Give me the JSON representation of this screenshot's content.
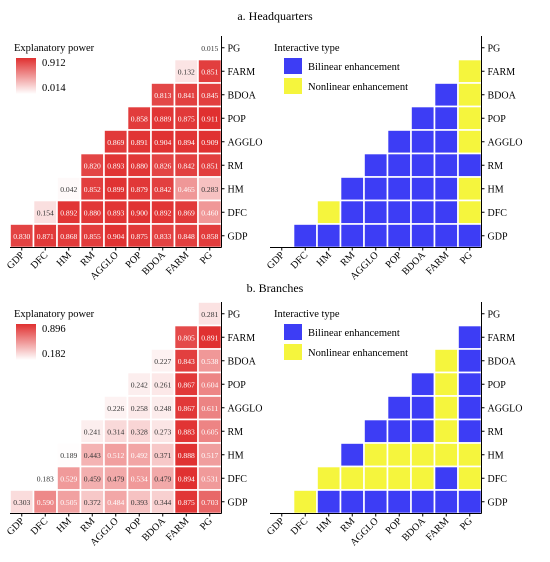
{
  "figure": {
    "panel_a_title": "a. Headquarters",
    "panel_b_title": "b. Branches"
  },
  "chart_data": [
    {
      "type": "heatmap",
      "title": "a. Headquarters",
      "legend_title": "Explanatory power",
      "legend_max": "0.912",
      "legend_min": "0.014",
      "legend_max_value": 0.912,
      "legend_min_value": 0.014,
      "color_low": "#ffffff",
      "color_high": "#e03030",
      "x_labels": [
        "GDP",
        "DFC",
        "HM",
        "RM",
        "AGGLO",
        "POP",
        "BDOA",
        "FARM",
        "PG"
      ],
      "y_labels": [
        "PG",
        "FARM",
        "BDOA",
        "POP",
        "AGGLO",
        "RM",
        "HM",
        "DFC",
        "GDP"
      ],
      "rows": [
        [
          "0.015"
        ],
        [
          "0.132",
          "0.851"
        ],
        [
          "0.813",
          "0.841",
          "0.845"
        ],
        [
          "0.858",
          "0.889",
          "0.875",
          "0.911"
        ],
        [
          "0.869",
          "0.891",
          "0.904",
          "0.894",
          "0.909"
        ],
        [
          "0.820",
          "0.893",
          "0.880",
          "0.826",
          "0.842",
          "0.851"
        ],
        [
          "0.042",
          "0.852",
          "0.899",
          "0.879",
          "0.842",
          "0.465",
          "0.283"
        ],
        [
          "0.154",
          "0.892",
          "0.880",
          "0.893",
          "0.900",
          "0.892",
          "0.869",
          "0.460"
        ],
        [
          "0.830",
          "0.871",
          "0.868",
          "0.855",
          "0.904",
          "0.875",
          "0.833",
          "0.848",
          "0.858"
        ]
      ]
    },
    {
      "type": "heatmap",
      "title": "a. Headquarters",
      "legend_title": "Interactive type",
      "categories": [
        "Bilinear enhancement",
        "Nonlinear enhancement"
      ],
      "colors": {
        "B": "#3d3df5",
        "N": "#f5f53d"
      },
      "x_labels": [
        "GDP",
        "DFC",
        "HM",
        "RM",
        "AGGLO",
        "POP",
        "BDOA",
        "FARM",
        "PG"
      ],
      "y_labels": [
        "PG",
        "FARM",
        "BDOA",
        "POP",
        "AGGLO",
        "RM",
        "HM",
        "DFC",
        "GDP"
      ],
      "rows": [
        [],
        [
          "N"
        ],
        [
          "B",
          "N"
        ],
        [
          "B",
          "B",
          "N"
        ],
        [
          "B",
          "B",
          "B",
          "N"
        ],
        [
          "B",
          "B",
          "B",
          "B",
          "B"
        ],
        [
          "B",
          "B",
          "B",
          "B",
          "B",
          "N"
        ],
        [
          "N",
          "B",
          "B",
          "B",
          "B",
          "B",
          "N"
        ],
        [
          "B",
          "B",
          "B",
          "B",
          "B",
          "B",
          "B",
          "B"
        ]
      ]
    },
    {
      "type": "heatmap",
      "title": "b. Branches",
      "legend_title": "Explanatory power",
      "legend_max": "0.896",
      "legend_min": "0.182",
      "legend_max_value": 0.896,
      "legend_min_value": 0.182,
      "color_low": "#ffffff",
      "color_high": "#e03030",
      "x_labels": [
        "GDP",
        "DFC",
        "HM",
        "RM",
        "AGGLO",
        "POP",
        "BDOA",
        "FARM",
        "PG"
      ],
      "y_labels": [
        "PG",
        "FARM",
        "BDOA",
        "POP",
        "AGGLO",
        "RM",
        "HM",
        "DFC",
        "GDP"
      ],
      "rows": [
        [
          "0.281"
        ],
        [
          "0.805",
          "0.891"
        ],
        [
          "0.227",
          "0.843",
          "0.538"
        ],
        [
          "0.242",
          "0.261",
          "0.867",
          "0.604"
        ],
        [
          "0.226",
          "0.258",
          "0.248",
          "0.867",
          "0.611"
        ],
        [
          "0.241",
          "0.314",
          "0.328",
          "0.273",
          "0.883",
          "0.605"
        ],
        [
          "0.189",
          "0.443",
          "0.512",
          "0.492",
          "0.371",
          "0.888",
          "0.517"
        ],
        [
          "0.183",
          "0.529",
          "0.459",
          "0.479",
          "0.534",
          "0.479",
          "0.894",
          "0.531"
        ],
        [
          "0.303",
          "0.590",
          "0.505",
          "0.372",
          "0.484",
          "0.393",
          "0.344",
          "0.875",
          "0.703"
        ]
      ]
    },
    {
      "type": "heatmap",
      "title": "b. Branches",
      "legend_title": "Interactive type",
      "categories": [
        "Bilinear enhancement",
        "Nonlinear enhancement"
      ],
      "colors": {
        "B": "#3d3df5",
        "N": "#f5f53d"
      },
      "x_labels": [
        "GDP",
        "DFC",
        "HM",
        "RM",
        "AGGLO",
        "POP",
        "BDOA",
        "FARM",
        "PG"
      ],
      "y_labels": [
        "PG",
        "FARM",
        "BDOA",
        "POP",
        "AGGLO",
        "RM",
        "HM",
        "DFC",
        "GDP"
      ],
      "rows": [
        [],
        [
          "B"
        ],
        [
          "N",
          "B"
        ],
        [
          "B",
          "N",
          "B"
        ],
        [
          "B",
          "B",
          "N",
          "B"
        ],
        [
          "B",
          "B",
          "B",
          "N",
          "B"
        ],
        [
          "B",
          "N",
          "N",
          "N",
          "N",
          "N"
        ],
        [
          "N",
          "N",
          "N",
          "N",
          "N",
          "B",
          "N"
        ],
        [
          "N",
          "B",
          "B",
          "B",
          "B",
          "B",
          "B",
          "B"
        ]
      ]
    }
  ]
}
